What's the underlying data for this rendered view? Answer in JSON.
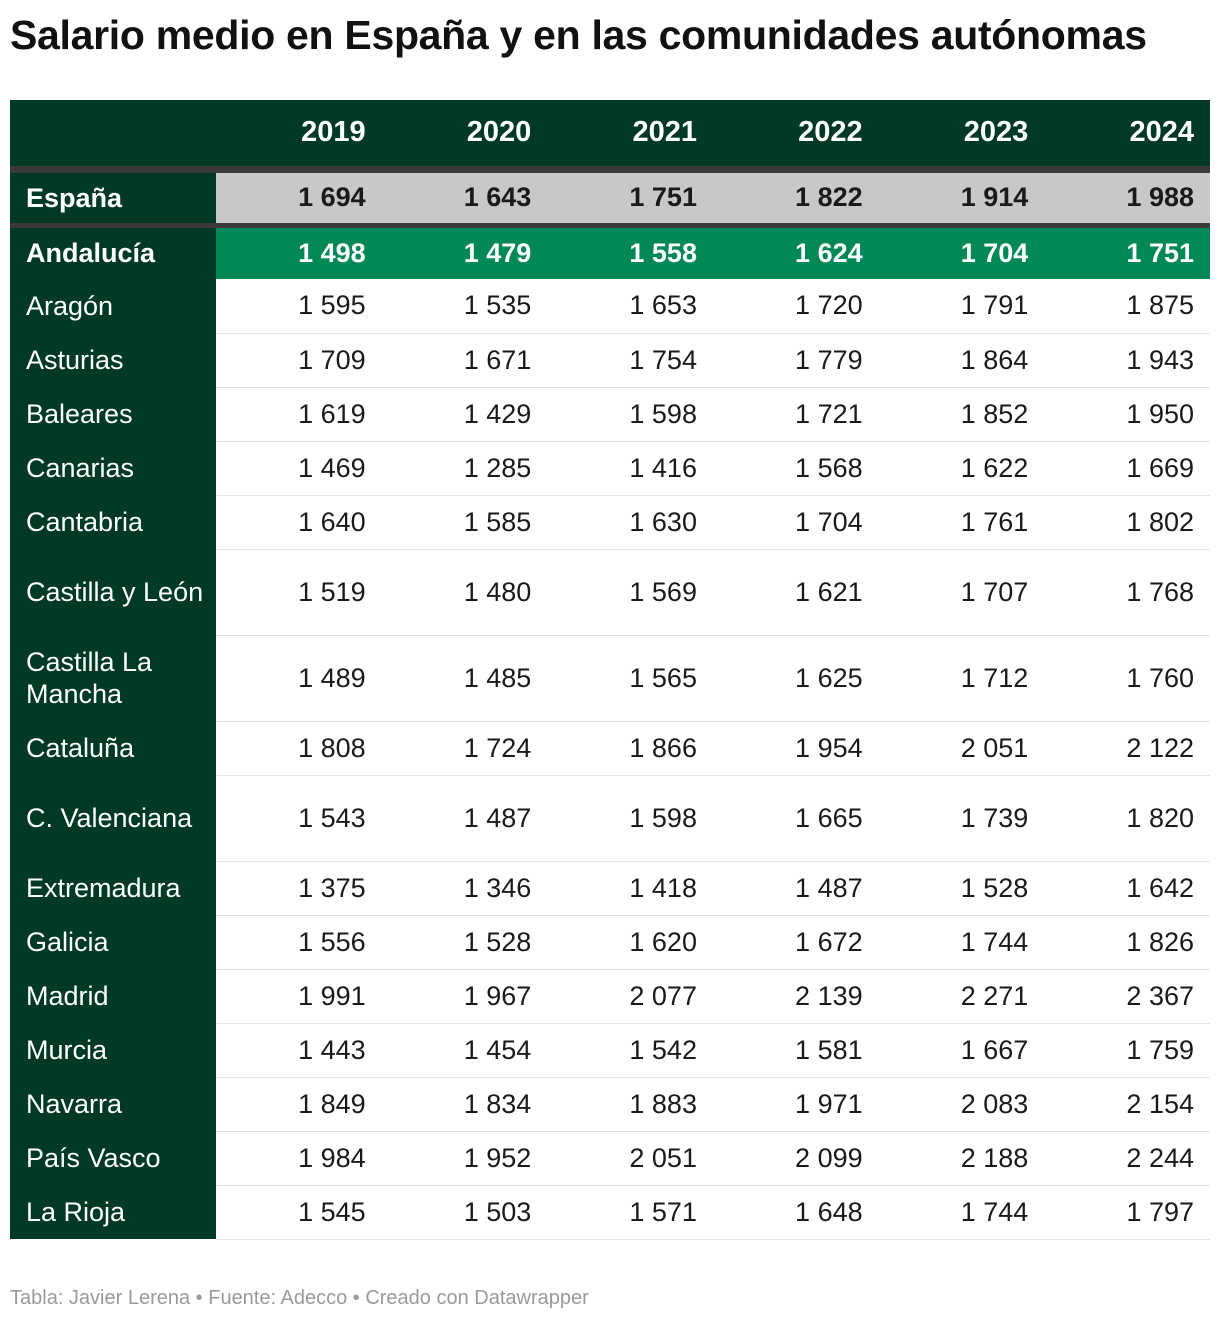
{
  "title": "Salario medio en España y en las comunidades autónomas",
  "footer": "Tabla: Javier Lerena • Fuente: Adecco • Creado con Datawrapper",
  "colors": {
    "header_bg": "#003a27",
    "highlight_bg": "#008857",
    "spain_bg": "#c8c8c8"
  },
  "chart_data": {
    "type": "table",
    "title": "Salario medio en España y en las comunidades autónomas",
    "columns": [
      "",
      "2019",
      "2020",
      "2021",
      "2022",
      "2023",
      "2024"
    ],
    "rows": [
      {
        "name": "España",
        "values": [
          "1 694",
          "1 643",
          "1 751",
          "1 822",
          "1 914",
          "1 988"
        ]
      },
      {
        "name": "Andalucía",
        "values": [
          "1 498",
          "1 479",
          "1 558",
          "1 624",
          "1 704",
          "1 751"
        ]
      },
      {
        "name": "Aragón",
        "values": [
          "1 595",
          "1 535",
          "1 653",
          "1 720",
          "1 791",
          "1 875"
        ]
      },
      {
        "name": "Asturias",
        "values": [
          "1 709",
          "1 671",
          "1 754",
          "1 779",
          "1 864",
          "1 943"
        ]
      },
      {
        "name": "Baleares",
        "values": [
          "1 619",
          "1 429",
          "1 598",
          "1 721",
          "1 852",
          "1 950"
        ]
      },
      {
        "name": "Canarias",
        "values": [
          "1 469",
          "1 285",
          "1 416",
          "1 568",
          "1 622",
          "1 669"
        ]
      },
      {
        "name": "Cantabria",
        "values": [
          "1 640",
          "1 585",
          "1 630",
          "1 704",
          "1 761",
          "1 802"
        ]
      },
      {
        "name": "Castilla y León",
        "values": [
          "1 519",
          "1 480",
          "1 569",
          "1 621",
          "1 707",
          "1 768"
        ]
      },
      {
        "name": "Castilla La Mancha",
        "values": [
          "1 489",
          "1 485",
          "1 565",
          "1 625",
          "1 712",
          "1 760"
        ]
      },
      {
        "name": "Cataluña",
        "values": [
          "1 808",
          "1 724",
          "1 866",
          "1 954",
          "2 051",
          "2 122"
        ]
      },
      {
        "name": "C. Valenciana",
        "values": [
          "1 543",
          "1 487",
          "1 598",
          "1 665",
          "1 739",
          "1 820"
        ]
      },
      {
        "name": "Extremadura",
        "values": [
          "1 375",
          "1 346",
          "1 418",
          "1 487",
          "1 528",
          "1 642"
        ]
      },
      {
        "name": "Galicia",
        "values": [
          "1 556",
          "1 528",
          "1 620",
          "1 672",
          "1 744",
          "1 826"
        ]
      },
      {
        "name": "Madrid",
        "values": [
          "1 991",
          "1 967",
          "2 077",
          "2 139",
          "2 271",
          "2 367"
        ]
      },
      {
        "name": "Murcia",
        "values": [
          "1 443",
          "1 454",
          "1 542",
          "1 581",
          "1 667",
          "1 759"
        ]
      },
      {
        "name": "Navarra",
        "values": [
          "1 849",
          "1 834",
          "1 883",
          "1 971",
          "2 083",
          "2 154"
        ]
      },
      {
        "name": "País Vasco",
        "values": [
          "1 984",
          "1 952",
          "2 051",
          "2 099",
          "2 188",
          "2 244"
        ]
      },
      {
        "name": "La Rioja",
        "values": [
          "1 545",
          "1 503",
          "1 571",
          "1 648",
          "1 744",
          "1 797"
        ]
      }
    ]
  }
}
